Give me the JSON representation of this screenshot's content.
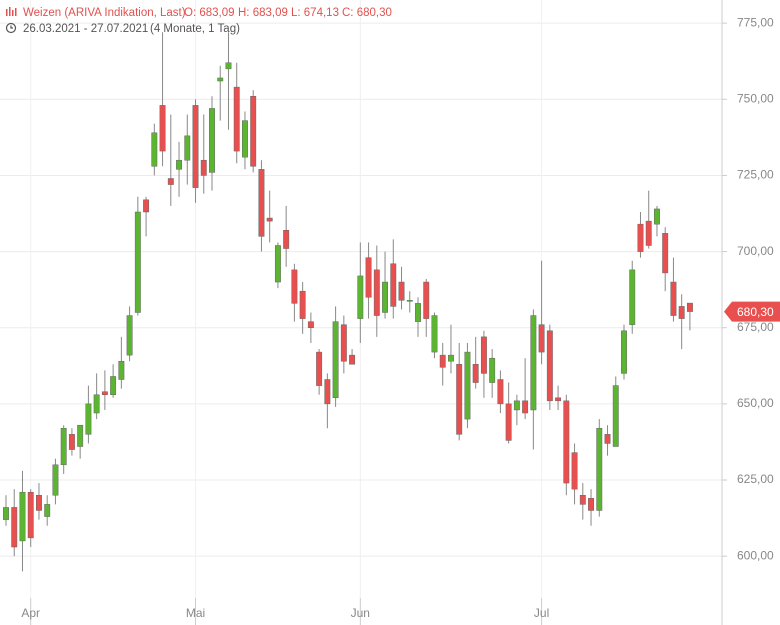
{
  "chart_data": {
    "type": "candlestick",
    "title": "Weizen (ARIVA Indikation, Last)",
    "ohlc_labels": [
      "O: 683,09",
      "H: 683,09",
      "L: 674,13",
      "C: 680,30"
    ],
    "period": "26.03.2021 - 27.07.2021",
    "period_note": "(4 Monate, 1 Tag)",
    "categories": [
      null,
      null,
      null,
      "Apr",
      null,
      null,
      null,
      null,
      null,
      null,
      null,
      null,
      null,
      null,
      null,
      null,
      null,
      null,
      null,
      null,
      null,
      null,
      null,
      "Mai",
      null,
      null,
      null,
      null,
      null,
      null,
      null,
      null,
      null,
      null,
      null,
      null,
      null,
      null,
      null,
      null,
      null,
      null,
      null,
      "Jun",
      null,
      null,
      null,
      null,
      null,
      null,
      null,
      null,
      null,
      null,
      null,
      null,
      null,
      null,
      null,
      null,
      null,
      null,
      null,
      null,
      null,
      "Jul",
      null,
      null,
      null,
      null,
      null,
      null,
      null,
      null,
      null,
      null,
      null,
      null,
      null,
      null,
      null,
      null,
      null,
      null
    ],
    "open": [
      612,
      616,
      605,
      621,
      620,
      613,
      620,
      630,
      640,
      636,
      640,
      647,
      654,
      653,
      658,
      666,
      680,
      717,
      728,
      748,
      724,
      727,
      730,
      748,
      730,
      726,
      756,
      760,
      754,
      731,
      751,
      727,
      711,
      690,
      707,
      694,
      687,
      677,
      667,
      658,
      652,
      676,
      666,
      678,
      698,
      694,
      680,
      696,
      690,
      684,
      677,
      690,
      667,
      666,
      664,
      663,
      645,
      663,
      672,
      657,
      658,
      650,
      648,
      651,
      648,
      676,
      674,
      652,
      651,
      634,
      620,
      619,
      615,
      640,
      636,
      660,
      676,
      709,
      710,
      709,
      706,
      690,
      682,
      683.09
    ],
    "high": [
      620,
      622,
      628,
      622,
      624,
      620,
      632,
      643,
      642,
      643,
      656,
      660,
      661,
      663,
      672,
      682,
      718,
      718,
      742,
      772,
      745,
      736,
      745,
      750,
      745,
      751,
      761,
      772,
      762,
      746,
      753,
      730,
      720,
      703,
      715,
      696,
      690,
      680,
      668,
      660,
      682,
      679,
      668,
      703,
      703,
      702,
      700,
      704,
      695,
      687,
      685,
      691,
      680,
      670,
      676,
      670,
      670,
      672,
      674,
      668,
      661,
      657,
      653,
      665,
      681,
      697,
      676,
      656,
      653,
      637,
      624,
      622,
      645,
      643,
      659,
      676,
      697,
      713,
      720,
      715,
      708,
      698,
      686,
      683.09
    ],
    "low": [
      610,
      600,
      595,
      603,
      612,
      610,
      617,
      627,
      633,
      632,
      637,
      645,
      648,
      652,
      655,
      664,
      679,
      705,
      725,
      728,
      715,
      718,
      722,
      716,
      719,
      720,
      743,
      740,
      729,
      727,
      726,
      700,
      703,
      688,
      695,
      677,
      673,
      670,
      653,
      642,
      649,
      660,
      663,
      670,
      678,
      672,
      678,
      678,
      681,
      680,
      672,
      672,
      665,
      656,
      660,
      638,
      642,
      655,
      652,
      652,
      647,
      637,
      643,
      645,
      635,
      663,
      648,
      648,
      620,
      617,
      612,
      610,
      613,
      633,
      636,
      658,
      673,
      698,
      701,
      705,
      687,
      677,
      668,
      674.13
    ],
    "close": [
      616,
      603,
      621,
      606,
      615,
      617,
      630,
      642,
      635,
      643,
      650,
      653,
      653,
      659,
      664,
      679,
      713,
      713,
      739,
      733,
      722,
      730,
      738,
      721,
      725,
      747,
      757,
      762,
      733,
      743,
      728,
      705,
      710,
      702,
      701,
      683,
      678,
      675,
      656,
      650,
      677,
      664,
      663,
      692,
      685,
      679,
      690,
      682,
      684,
      684,
      683,
      678,
      679,
      662,
      666,
      640,
      667,
      657,
      660,
      665,
      650,
      638,
      651,
      647,
      679,
      667,
      651,
      651,
      624,
      622,
      617,
      615,
      642,
      637,
      656,
      674,
      694,
      700,
      702,
      714,
      693,
      679,
      678,
      680.3
    ],
    "up_color": "#5cb531",
    "down_color": "#e8504f",
    "last_price": {
      "value": 680.3,
      "label": "680,30"
    },
    "ylim": [
      577.4,
      782.6
    ],
    "yticks": [
      {
        "value": 600,
        "label": "600,00"
      },
      {
        "value": 625,
        "label": "625,00"
      },
      {
        "value": 650,
        "label": "650,00"
      },
      {
        "value": 675,
        "label": "675,00"
      },
      {
        "value": 700,
        "label": "700,00"
      },
      {
        "value": 725,
        "label": "725,00"
      },
      {
        "value": 750,
        "label": "750,00"
      },
      {
        "value": 775,
        "label": "775,00"
      }
    ],
    "grid": true
  }
}
